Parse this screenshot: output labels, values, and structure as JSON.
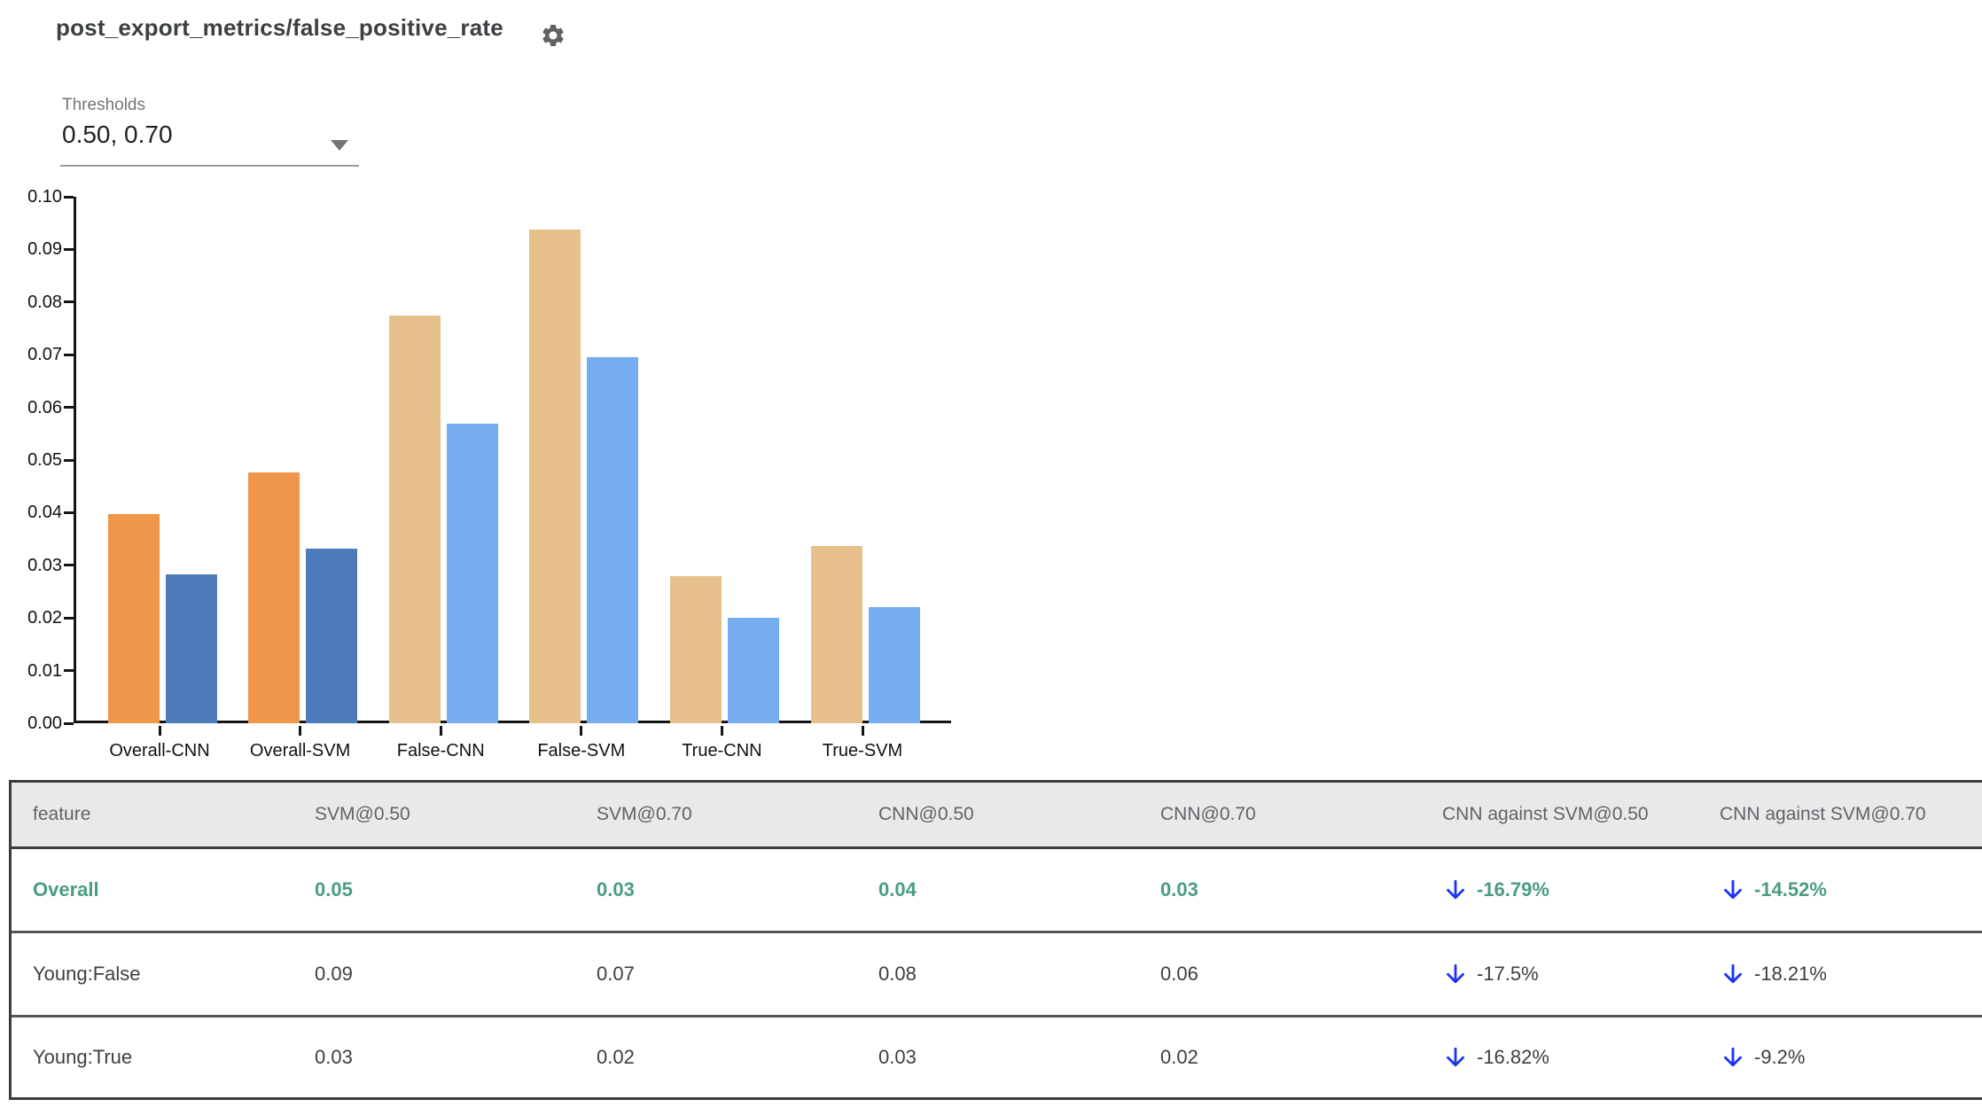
{
  "header": {
    "title": "post_export_metrics/false_positive_rate"
  },
  "threshold_select": {
    "label": "Thresholds",
    "value": "0.50, 0.70"
  },
  "chart_data": {
    "type": "bar",
    "title": "",
    "xlabel": "",
    "ylabel": "",
    "ylim": [
      0,
      0.1
    ],
    "ytick_step": 0.01,
    "ytick_labels": [
      "0.00",
      "0.01",
      "0.02",
      "0.03",
      "0.04",
      "0.05",
      "0.06",
      "0.07",
      "0.08",
      "0.09",
      "0.10"
    ],
    "grid": false,
    "legend": "none",
    "categories": [
      "Overall-CNN",
      "Overall-SVM",
      "False-CNN",
      "False-SVM",
      "True-CNN",
      "True-SVM"
    ],
    "series": [
      {
        "name": "threshold-0.50",
        "values": [
          0.0397,
          0.0477,
          0.0775,
          0.0937,
          0.028,
          0.0337
        ]
      },
      {
        "name": "threshold-0.70",
        "values": [
          0.0282,
          0.0331,
          0.0569,
          0.0695,
          0.0201,
          0.0221
        ]
      }
    ],
    "category_colors": [
      [
        "#F0964A",
        "#4E7CBB"
      ],
      [
        "#F0964A",
        "#4E7CBB"
      ],
      [
        "#E7BF8A",
        "#75ADF0"
      ],
      [
        "#E7BF8A",
        "#75ADF0"
      ],
      [
        "#E7BF8A",
        "#75ADF0"
      ],
      [
        "#E7BF8A",
        "#75ADF0"
      ]
    ]
  },
  "table": {
    "columns": [
      "feature",
      "SVM@0.50",
      "SVM@0.70",
      "CNN@0.50",
      "CNN@0.70",
      "CNN against SVM@0.50",
      "CNN against SVM@0.70"
    ],
    "rows": [
      {
        "feature": "Overall",
        "values": [
          "0.05",
          "0.03",
          "0.04",
          "0.03"
        ],
        "deltas": [
          {
            "direction": "down",
            "text": "-16.79%"
          },
          {
            "direction": "down",
            "text": "-14.52%"
          }
        ],
        "highlighted": true
      },
      {
        "feature": "Young:False",
        "values": [
          "0.09",
          "0.07",
          "0.08",
          "0.06"
        ],
        "deltas": [
          {
            "direction": "down",
            "text": "-17.5%"
          },
          {
            "direction": "down",
            "text": "-18.21%"
          }
        ],
        "highlighted": false
      },
      {
        "feature": "Young:True",
        "values": [
          "0.03",
          "0.02",
          "0.03",
          "0.02"
        ],
        "deltas": [
          {
            "direction": "down",
            "text": "-16.82%"
          },
          {
            "direction": "down",
            "text": "-9.2%"
          }
        ],
        "highlighted": false
      }
    ],
    "colors": {
      "highlight_text": "#4A9C83",
      "arrow": "#1C35F4",
      "header_bg": "#E9E9E9",
      "header_text": "#5F6368",
      "body_text": "#3C4043"
    }
  }
}
